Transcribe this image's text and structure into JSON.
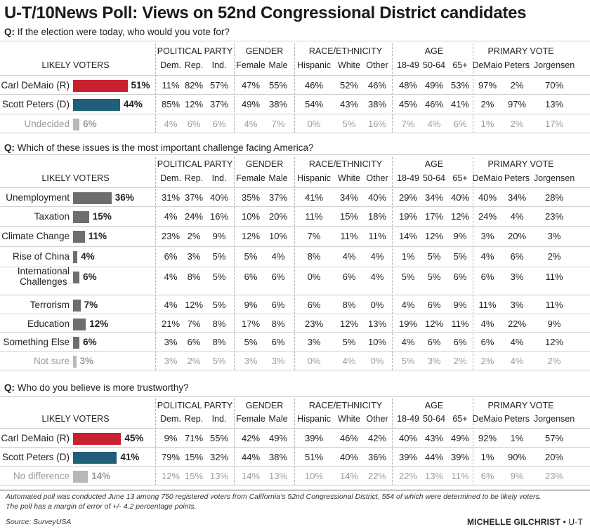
{
  "title": "U-T/10News Poll: Views on 52nd Congressional District candidates",
  "column_groups": [
    {
      "label": "POLITICAL PARTY",
      "cols": [
        "Dem.",
        "Rep.",
        "Ind."
      ]
    },
    {
      "label": "GENDER",
      "cols": [
        "Female",
        "Male"
      ]
    },
    {
      "label": "RACE/ETHNICITY",
      "cols": [
        "Hispanic",
        "White",
        "Other"
      ]
    },
    {
      "label": "AGE",
      "cols": [
        "18-49",
        "50-64",
        "65+"
      ]
    },
    {
      "label": "PRIMARY VOTE",
      "cols": [
        "DeMaio",
        "Peters",
        "Jorgensen"
      ]
    }
  ],
  "likely_voters_label": "LIKELY VOTERS",
  "colors": {
    "red": "#c8202e",
    "blue": "#1f5f7a",
    "gray": "#6e6e6e",
    "lightgray": "#b8b8b8"
  },
  "chart_data": [
    {
      "type": "bar",
      "question_prefix": "Q:",
      "question": "If the election were today, who would you vote for?",
      "rows": [
        {
          "label": "Carl DeMaio (R)",
          "value": 51,
          "pct": "51%",
          "color": "red",
          "muted": false,
          "cells": [
            "11%",
            "82%",
            "57%",
            "47%",
            "55%",
            "46%",
            "52%",
            "46%",
            "48%",
            "49%",
            "53%",
            "97%",
            "2%",
            "70%"
          ]
        },
        {
          "label": "Scott Peters (D)",
          "value": 44,
          "pct": "44%",
          "color": "blue",
          "muted": false,
          "cells": [
            "85%",
            "12%",
            "37%",
            "49%",
            "38%",
            "54%",
            "43%",
            "38%",
            "45%",
            "46%",
            "41%",
            "2%",
            "97%",
            "13%"
          ]
        },
        {
          "label": "Undecided",
          "value": 6,
          "pct": "6%",
          "color": "lightgray",
          "muted": true,
          "cells": [
            "4%",
            "6%",
            "6%",
            "4%",
            "7%",
            "0%",
            "5%",
            "16%",
            "7%",
            "4%",
            "6%",
            "1%",
            "2%",
            "17%"
          ]
        }
      ]
    },
    {
      "type": "bar",
      "question_prefix": "Q:",
      "question": "Which of these issues is the most important challenge facing America?",
      "rows": [
        {
          "label": "Unemployment",
          "value": 36,
          "pct": "36%",
          "color": "gray",
          "muted": false,
          "cells": [
            "31%",
            "37%",
            "40%",
            "35%",
            "37%",
            "41%",
            "34%",
            "40%",
            "29%",
            "34%",
            "40%",
            "40%",
            "34%",
            "28%"
          ]
        },
        {
          "label": "Taxation",
          "value": 15,
          "pct": "15%",
          "color": "gray",
          "muted": false,
          "cells": [
            "4%",
            "24%",
            "16%",
            "10%",
            "20%",
            "11%",
            "15%",
            "18%",
            "19%",
            "17%",
            "12%",
            "24%",
            "4%",
            "23%"
          ]
        },
        {
          "label": "Climate Change",
          "value": 11,
          "pct": "11%",
          "color": "gray",
          "muted": false,
          "cells": [
            "23%",
            "2%",
            "9%",
            "12%",
            "10%",
            "7%",
            "11%",
            "11%",
            "14%",
            "12%",
            "9%",
            "3%",
            "20%",
            "3%"
          ]
        },
        {
          "label": "Rise of China",
          "value": 4,
          "pct": "4%",
          "color": "gray",
          "muted": false,
          "cells": [
            "6%",
            "3%",
            "5%",
            "5%",
            "4%",
            "8%",
            "4%",
            "4%",
            "1%",
            "5%",
            "5%",
            "4%",
            "6%",
            "2%"
          ]
        },
        {
          "label": "International",
          "label2": "Challenges",
          "value": 6,
          "pct": "6%",
          "color": "gray",
          "muted": false,
          "cells": [
            "4%",
            "8%",
            "5%",
            "6%",
            "6%",
            "0%",
            "6%",
            "4%",
            "5%",
            "5%",
            "6%",
            "6%",
            "3%",
            "11%"
          ]
        },
        {
          "label": "Terrorism",
          "value": 7,
          "pct": "7%",
          "color": "gray",
          "muted": false,
          "cells": [
            "4%",
            "12%",
            "5%",
            "9%",
            "6%",
            "6%",
            "8%",
            "0%",
            "4%",
            "6%",
            "9%",
            "11%",
            "3%",
            "11%"
          ]
        },
        {
          "label": "Education",
          "value": 12,
          "pct": "12%",
          "color": "gray",
          "muted": false,
          "cells": [
            "21%",
            "7%",
            "8%",
            "17%",
            "8%",
            "23%",
            "12%",
            "13%",
            "19%",
            "12%",
            "11%",
            "4%",
            "22%",
            "9%"
          ]
        },
        {
          "label": "Something Else",
          "value": 6,
          "pct": "6%",
          "color": "gray",
          "muted": false,
          "cells": [
            "3%",
            "6%",
            "8%",
            "5%",
            "6%",
            "3%",
            "5%",
            "10%",
            "4%",
            "6%",
            "6%",
            "6%",
            "4%",
            "12%"
          ]
        },
        {
          "label": "Not sure",
          "value": 3,
          "pct": "3%",
          "color": "lightgray",
          "muted": true,
          "cells": [
            "3%",
            "2%",
            "5%",
            "3%",
            "3%",
            "0%",
            "4%",
            "0%",
            "5%",
            "3%",
            "2%",
            "2%",
            "4%",
            "2%"
          ]
        }
      ]
    },
    {
      "type": "bar",
      "question_prefix": "Q:",
      "question": "Who do you believe is more trustworthy?",
      "rows": [
        {
          "label": "Carl DeMaio (R)",
          "value": 45,
          "pct": "45%",
          "color": "red",
          "muted": false,
          "cells": [
            "9%",
            "71%",
            "55%",
            "42%",
            "49%",
            "39%",
            "46%",
            "42%",
            "40%",
            "43%",
            "49%",
            "92%",
            "1%",
            "57%"
          ]
        },
        {
          "label": "Scott Peters (D)",
          "value": 41,
          "pct": "41%",
          "color": "blue",
          "muted": false,
          "cells": [
            "79%",
            "15%",
            "32%",
            "44%",
            "38%",
            "51%",
            "40%",
            "36%",
            "39%",
            "44%",
            "39%",
            "1%",
            "90%",
            "20%"
          ]
        },
        {
          "label": "No difference",
          "value": 14,
          "pct": "14%",
          "color": "lightgray",
          "muted": true,
          "cells": [
            "12%",
            "15%",
            "13%",
            "14%",
            "13%",
            "10%",
            "14%",
            "22%",
            "22%",
            "13%",
            "11%",
            "6%",
            "9%",
            "23%"
          ]
        }
      ]
    }
  ],
  "footnote_1": "Automated poll was conducted June 13 among 750 registered voters from California’s 52nd Congressional District, 554 of which were determined to be likely voters.",
  "footnote_2": "The poll has a margin of error of +/- 4.2 percentage points.",
  "source": "Source: SurveyUSA",
  "credit_name": "MICHELLE GILCHRIST",
  "credit_org": "• U-T"
}
